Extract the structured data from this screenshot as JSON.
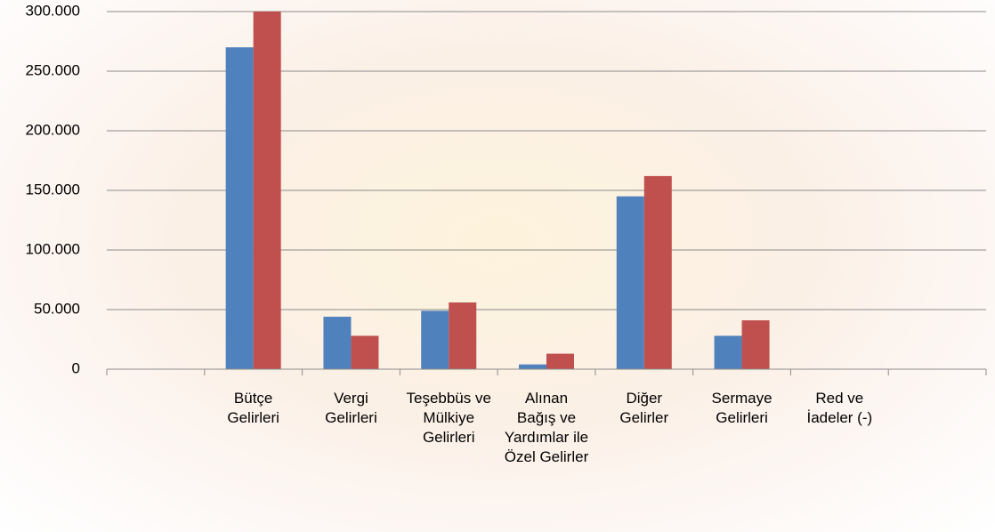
{
  "chart_data": {
    "type": "bar",
    "categories": [
      null,
      "Bütçe Gelirleri",
      "Vergi Gelirleri",
      "Teşebbüs ve Mülkiye Gelirleri",
      "Alınan Bağış ve Yardımlar ile Özel Gelirler",
      "Diğer Gelirler",
      "Sermaye Gelirleri",
      "Red ve İadeler (-)",
      null
    ],
    "series": [
      {
        "color": "#4f81bd",
        "values": [
          null,
          270000,
          44000,
          49000,
          4000,
          145000,
          28000,
          0,
          null
        ]
      },
      {
        "color": "#c0504d",
        "values": [
          null,
          300000,
          28000,
          56000,
          13000,
          162000,
          41000,
          0,
          null
        ]
      }
    ],
    "ylim": [
      0,
      300000
    ],
    "yticks": [
      0,
      {
        "value": 50000,
        "label": "50.000"
      },
      {
        "value": 100000,
        "label": "100.000"
      },
      {
        "value": 150000,
        "label": "150.000"
      },
      {
        "value": 200000,
        "label": "200.000"
      },
      {
        "value": 250000,
        "label": "250.000"
      },
      {
        "value": 300000,
        "label": "300.000"
      }
    ],
    "grid": true
  }
}
